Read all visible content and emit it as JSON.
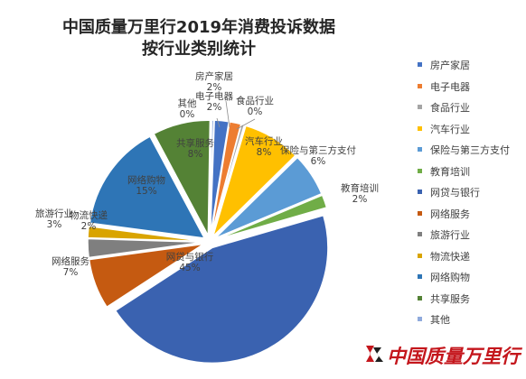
{
  "chart_data": {
    "type": "pie",
    "title": [
      "中国质量万里行2019年消费投诉数据",
      "按行业类别统计"
    ],
    "slices": [
      {
        "label": "房产家居",
        "percent": "2%",
        "value": 2.0,
        "color": "#4472c4",
        "label_text": "房产家居\n2%"
      },
      {
        "label": "电子电器",
        "percent": "2%",
        "value": 1.6,
        "color": "#ed7d31",
        "label_text": "电子电器\n2%"
      },
      {
        "label": "食品行业",
        "percent": "0%",
        "value": 0.4,
        "color": "#a5a5a5",
        "label_text": "食品行业\n0%"
      },
      {
        "label": "汽车行业",
        "percent": "8%",
        "value": 8.0,
        "color": "#ffc000",
        "label_text": "汽车行业\n8%"
      },
      {
        "label": "保险与第三方支付",
        "percent": "6%",
        "value": 6.0,
        "color": "#5b9bd5",
        "label_text": "保险与第三方支付\n6%"
      },
      {
        "label": "教育培训",
        "percent": "2%",
        "value": 1.8,
        "color": "#70ad47",
        "label_text": "教育培训\n2%"
      },
      {
        "label": "网贷与银行",
        "percent": "45%",
        "value": 45.0,
        "color": "#3a62b0",
        "label_text": "网贷与银行\n45%"
      },
      {
        "label": "网络服务",
        "percent": "7%",
        "value": 7.0,
        "color": "#c55a11",
        "label_text": "网络服务\n7%"
      },
      {
        "label": "旅游行业",
        "percent": "3%",
        "value": 2.6,
        "color": "#7f7f7f",
        "label_text": "旅游行业\n3%"
      },
      {
        "label": "物流快递",
        "percent": "2%",
        "value": 1.6,
        "color": "#d9a400",
        "label_text": "物流快递\n2%"
      },
      {
        "label": "网络购物",
        "percent": "15%",
        "value": 15.0,
        "color": "#2e75b6",
        "label_text": "网络购物\n15%"
      },
      {
        "label": "共享服务",
        "percent": "8%",
        "value": 8.0,
        "color": "#548235",
        "label_text": "共享服务\n8%"
      },
      {
        "label": "其他",
        "percent": "0%",
        "value": 0.3,
        "color": "#8faadc",
        "label_text": "其他\n0%"
      }
    ],
    "legend_position": "right"
  },
  "watermark": {
    "text": "中国质量万里行",
    "color": "#c4161c"
  }
}
